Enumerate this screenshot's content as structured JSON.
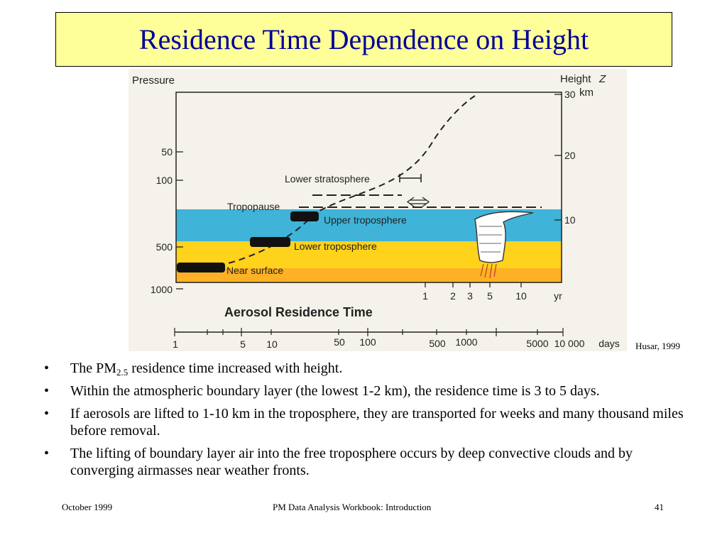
{
  "title": "Residence Time Dependence on Height",
  "figure": {
    "pressure_label": "Pressure",
    "height_label": "Height",
    "height_var": "Z",
    "height_unit": "km",
    "pressure_ticks": [
      "50",
      "100",
      "500",
      "1000"
    ],
    "height_ticks": [
      "30",
      "20",
      "10"
    ],
    "regions": {
      "lower_stratosphere": "Lower stratosphere",
      "tropopause": "Tropopause",
      "upper_troposphere": "Upper troposphere",
      "lower_troposphere": "Lower troposphere",
      "near_surface": "Near surface"
    },
    "year_ticks": [
      "1",
      "2",
      "3",
      "5",
      "10"
    ],
    "year_unit": "yr",
    "axis_title": "Aerosol Residence Time",
    "day_ticks": [
      "1",
      "5",
      "10",
      "50",
      "100",
      "500",
      "1000",
      "5000",
      "10 000"
    ],
    "day_unit": "days",
    "colors": {
      "troposphere_upper": "#3fb3d8",
      "troposphere_lower": "#ffd21c",
      "surface": "#ffb125"
    }
  },
  "credit": "Husar, 1999",
  "bullets": [
    {
      "pre": "The PM",
      "sub": "2.5",
      "post": " residence time increased with height."
    },
    {
      "text": "Within the atmospheric boundary layer (the lowest 1-2 km), the residence time is 3 to 5 days."
    },
    {
      "text": "If aerosols are lifted to 1-10 km in the troposphere, they are transported for weeks and many thousand miles before removal."
    },
    {
      "text": "The lifting of boundary layer air into the free troposphere occurs by deep convective clouds and by converging airmasses near weather fronts."
    }
  ],
  "bullet_char": "•",
  "footer": {
    "date": "October 1999",
    "center": "PM Data Analysis Workbook: Introduction",
    "page": "41"
  }
}
